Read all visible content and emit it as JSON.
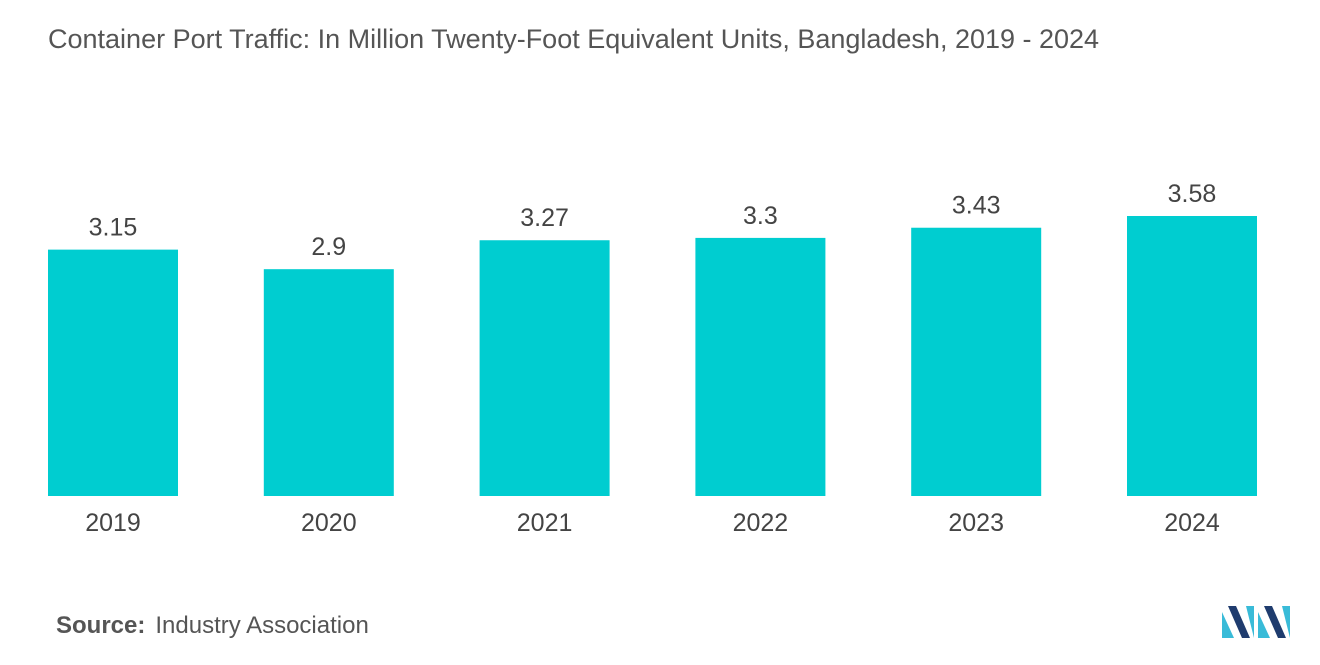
{
  "title": "Container Port Traffic: In Million Twenty-Foot Equivalent Units, Bangladesh, 2019 - 2024",
  "source": {
    "label": "Source:",
    "value": "Industry Association"
  },
  "colors": {
    "bar": "#00CDD0",
    "text": "#444444",
    "logo_dark": "#1F3C6E",
    "logo_light": "#39BBD8"
  },
  "logo_icon": "mordor-intelligence-logo-icon",
  "chart_data": {
    "type": "bar",
    "title": "Container Port Traffic: In Million Twenty-Foot Equivalent Units, Bangladesh, 2019 - 2024",
    "xlabel": "",
    "ylabel": "",
    "categories": [
      "2019",
      "2020",
      "2021",
      "2022",
      "2023",
      "2024"
    ],
    "values": [
      3.15,
      2.9,
      3.27,
      3.3,
      3.43,
      3.58
    ],
    "value_labels": [
      "3.15",
      "2.9",
      "3.27",
      "3.3",
      "3.43",
      "3.58"
    ],
    "ylim": [
      0,
      3.58
    ],
    "grid": false,
    "legend": "none"
  }
}
